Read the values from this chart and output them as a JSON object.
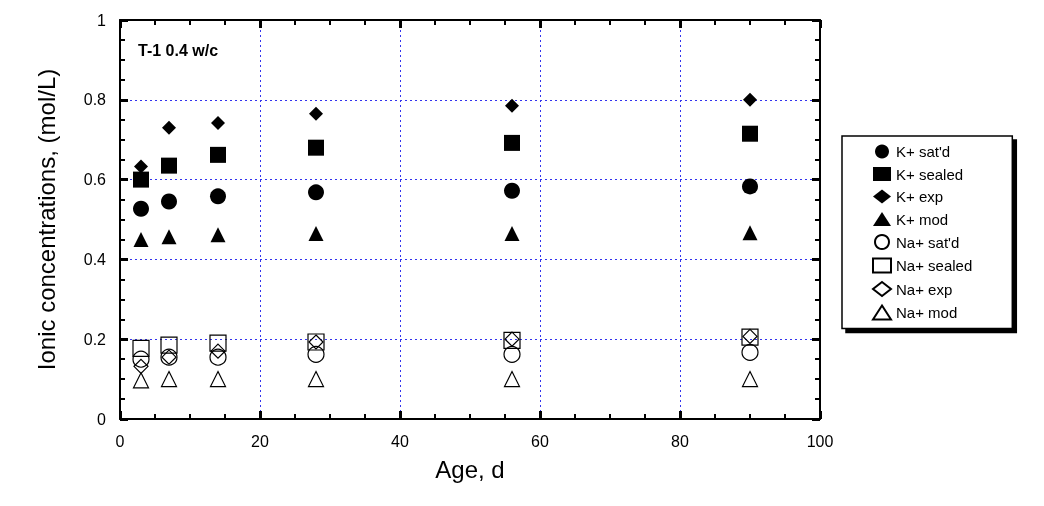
{
  "chart_data": {
    "type": "scatter",
    "xlabel": "Age, d",
    "ylabel": "Ionic concentrations, (mol/L)",
    "annotations": [
      "T-1 0.4 w/c"
    ],
    "x": [
      3,
      7,
      14,
      28,
      56,
      90
    ],
    "series": [
      {
        "name": "K+ sat'd",
        "color": "#000000",
        "marker": "circle",
        "values": [
          0.527,
          0.545,
          0.558,
          0.568,
          0.572,
          0.583
        ]
      },
      {
        "name": "K+ sealed",
        "color": "#000000",
        "marker": "square",
        "values": [
          0.6,
          0.635,
          0.662,
          0.68,
          0.692,
          0.715
        ]
      },
      {
        "name": "K+ exp",
        "color": "#000000",
        "marker": "diamond",
        "values": [
          0.633,
          0.73,
          0.742,
          0.765,
          0.785,
          0.8
        ]
      },
      {
        "name": "K+ mod",
        "color": "#000000",
        "marker": "triangle",
        "values": [
          0.45,
          0.457,
          0.462,
          0.465,
          0.465,
          0.467
        ]
      },
      {
        "name": "Na+ sat'd",
        "color": "#000000",
        "marker": "circle",
        "values": [
          0.15,
          0.155,
          0.155,
          0.162,
          0.162,
          0.167
        ]
      },
      {
        "name": "Na+ sealed",
        "color": "#000000",
        "marker": "square",
        "values": [
          0.177,
          0.185,
          0.19,
          0.193,
          0.197,
          0.205
        ]
      },
      {
        "name": "Na+ exp",
        "color": "#000000",
        "marker": "diamond",
        "values": [
          0.132,
          0.155,
          0.17,
          0.193,
          0.2,
          0.207
        ]
      },
      {
        "name": "Na+ mod",
        "color": "#000000",
        "marker": "triangle",
        "values": [
          0.097,
          0.1,
          0.1,
          0.1,
          0.1,
          0.1
        ]
      }
    ],
    "xlim": [
      0,
      100
    ],
    "xticks": [
      0,
      20,
      40,
      60,
      80,
      100
    ],
    "ylim": [
      0,
      1
    ],
    "yticks": [
      0,
      0.2,
      0.4,
      0.6,
      0.8,
      1
    ],
    "grid": true,
    "legend": "right"
  }
}
